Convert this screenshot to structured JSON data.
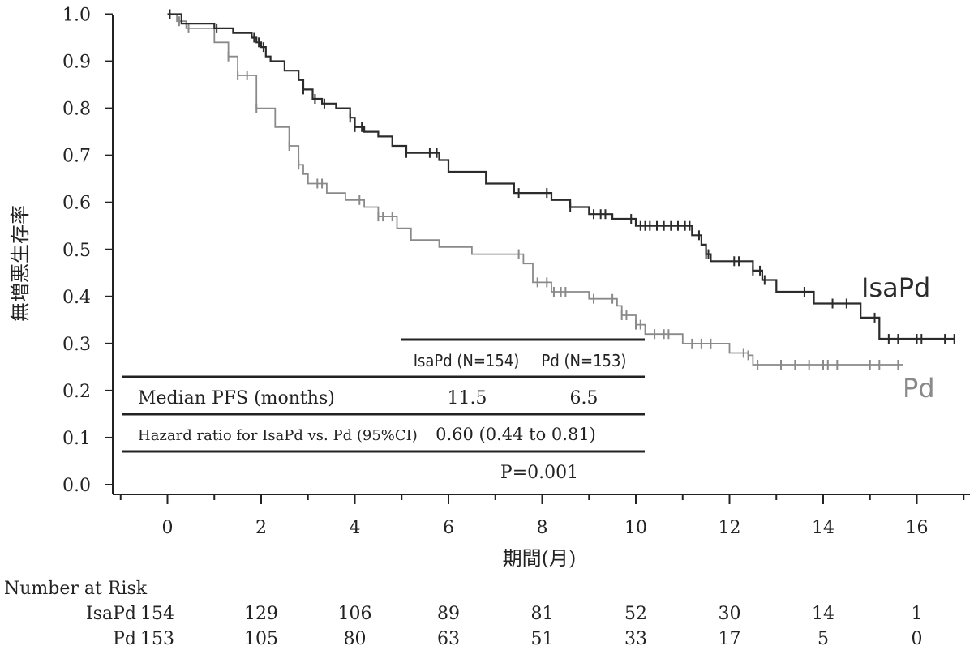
{
  "chart_data": {
    "type": "line",
    "step": true,
    "xlabel": "期間(月)",
    "ylabel": "無増悪生存率",
    "xlim": [
      -1.2,
      17.1
    ],
    "ylim": [
      0,
      1.0
    ],
    "x_ticks": [
      0,
      2,
      4,
      6,
      8,
      10,
      12,
      14,
      16
    ],
    "y_ticks": [
      "0.0",
      "0.1",
      "0.2",
      "0.3",
      "0.4",
      "0.5",
      "0.6",
      "0.7",
      "0.8",
      "0.9",
      "1.0"
    ],
    "colors": {
      "IsaPd": "#2b2b2b",
      "Pd": "#8a8a8a"
    },
    "series": [
      {
        "name": "IsaPd",
        "x": [
          0,
          0.3,
          1.0,
          1.4,
          1.8,
          1.9,
          2.0,
          2.1,
          2.2,
          2.5,
          2.8,
          2.9,
          3.1,
          3.3,
          3.6,
          3.9,
          4.0,
          4.2,
          4.5,
          4.8,
          5.1,
          5.8,
          6.0,
          6.8,
          7.4,
          8.2,
          8.6,
          9.0,
          9.5,
          10.0,
          11.2,
          11.4,
          11.5,
          11.6,
          12.5,
          12.7,
          13.0,
          13.8,
          14.8,
          15.2,
          16.8
        ],
        "y": [
          1.0,
          0.98,
          0.97,
          0.96,
          0.95,
          0.94,
          0.93,
          0.91,
          0.9,
          0.88,
          0.86,
          0.84,
          0.82,
          0.81,
          0.8,
          0.78,
          0.76,
          0.75,
          0.74,
          0.72,
          0.705,
          0.69,
          0.665,
          0.64,
          0.62,
          0.605,
          0.59,
          0.575,
          0.565,
          0.55,
          0.53,
          0.51,
          0.49,
          0.475,
          0.455,
          0.435,
          0.41,
          0.385,
          0.355,
          0.31,
          0.31
        ],
        "censor_x": [
          0.05,
          1.05,
          1.85,
          1.95,
          2.05,
          2.9,
          3.15,
          3.35,
          3.9,
          4.0,
          4.15,
          5.1,
          5.6,
          5.75,
          7.5,
          8.1,
          8.6,
          9.1,
          9.25,
          9.35,
          9.9,
          10.1,
          10.2,
          10.3,
          10.45,
          10.6,
          10.75,
          10.9,
          11.05,
          11.15,
          11.35,
          11.5,
          11.55,
          12.1,
          12.2,
          12.5,
          12.65,
          12.75,
          13.6,
          14.2,
          14.5,
          15.1,
          15.4,
          15.6,
          16.0,
          16.1,
          16.6,
          16.8
        ]
      },
      {
        "name": "Pd",
        "x": [
          0,
          0.2,
          0.4,
          1.0,
          1.3,
          1.5,
          1.9,
          2.3,
          2.6,
          2.8,
          2.9,
          3.0,
          3.4,
          3.8,
          4.2,
          4.5,
          4.9,
          5.2,
          5.8,
          6.5,
          7.6,
          7.8,
          8.2,
          9.0,
          9.6,
          9.7,
          10.0,
          10.2,
          11.0,
          12.0,
          12.4,
          12.5,
          15.7
        ],
        "y": [
          1.0,
          0.985,
          0.97,
          0.94,
          0.91,
          0.87,
          0.8,
          0.76,
          0.72,
          0.68,
          0.66,
          0.64,
          0.62,
          0.605,
          0.59,
          0.57,
          0.545,
          0.52,
          0.505,
          0.49,
          0.47,
          0.43,
          0.41,
          0.395,
          0.38,
          0.36,
          0.34,
          0.32,
          0.3,
          0.28,
          0.275,
          0.255,
          0.255
        ],
        "censor_x": [
          0.05,
          0.25,
          0.45,
          1.3,
          1.5,
          1.7,
          1.9,
          2.6,
          2.8,
          3.2,
          3.3,
          4.1,
          4.5,
          4.6,
          4.8,
          7.5,
          7.9,
          8.1,
          8.25,
          8.4,
          8.5,
          9.1,
          9.5,
          9.7,
          9.8,
          10.0,
          10.1,
          10.4,
          10.6,
          10.7,
          11.2,
          11.4,
          11.6,
          12.3,
          12.4,
          12.6,
          13.1,
          13.4,
          13.7,
          14.0,
          14.1,
          14.3,
          15.0,
          15.2,
          15.6
        ]
      }
    ],
    "series_labels": [
      "IsaPd",
      "Pd"
    ],
    "summary_table": {
      "col_headers": [
        "IsaPd (N=154)",
        "Pd (N=153)"
      ],
      "row1_label": "Median PFS (months)",
      "row1_values": [
        "11.5",
        "6.5"
      ],
      "row2_label": "Hazard ratio for IsaPd vs. Pd (95%CI)",
      "row2_value": "0.60 (0.44 to 0.81)",
      "p_value": "P=0.001"
    },
    "risk_table": {
      "title": "Number at Risk",
      "rows": [
        {
          "label": "IsaPd",
          "values": [
            "154",
            "129",
            "106",
            "89",
            "81",
            "52",
            "30",
            "14",
            "1"
          ]
        },
        {
          "label": "Pd",
          "values": [
            "153",
            "105",
            "80",
            "63",
            "51",
            "33",
            "17",
            "5",
            "0"
          ]
        }
      ]
    }
  }
}
